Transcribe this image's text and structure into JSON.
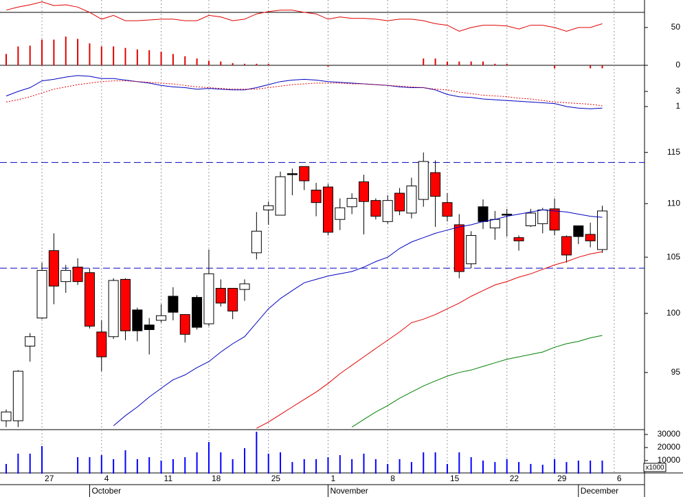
{
  "chart_data": [
    {
      "type": "line",
      "ylim": [
        0,
        86.4
      ],
      "yticks": [
        50,
        0
      ],
      "hlines": [
        70
      ],
      "hline_color": "#000000",
      "hline_style": "solid",
      "series": [
        {
          "style": "line",
          "color": "#e00000",
          "values": [
            73,
            77,
            80,
            84,
            79,
            80,
            77,
            70,
            61,
            66,
            59,
            59,
            60,
            61,
            61,
            59,
            59,
            66,
            64,
            59,
            61,
            68,
            71,
            73,
            73,
            70,
            68,
            61,
            64,
            62,
            62,
            61,
            59,
            61,
            61,
            59,
            55,
            53,
            45,
            50,
            53,
            53,
            52,
            48,
            53,
            53,
            50,
            45,
            50,
            50,
            55,
            null
          ]
        },
        {
          "style": "bar",
          "color": "#e00000",
          "values": [
            15,
            25,
            26,
            34,
            34,
            38,
            35,
            29,
            25,
            25,
            23,
            21,
            20,
            18,
            15,
            12,
            9,
            6,
            5,
            3,
            2,
            2,
            2,
            0,
            0,
            0,
            0,
            -2,
            0,
            0,
            0,
            0,
            0,
            0,
            0,
            9,
            9,
            5,
            5,
            5,
            5,
            2,
            2,
            0,
            0,
            0,
            -4,
            0,
            0,
            -4,
            -4,
            null
          ]
        }
      ]
    },
    {
      "type": "line",
      "ylim": [
        -1.27,
        6.45
      ],
      "yticks": [
        3,
        1
      ],
      "series": [
        {
          "style": "line",
          "color": "#0000c0",
          "values": [
            2.4,
            3.0,
            3.5,
            4.4,
            4.6,
            4.9,
            5.1,
            5.0,
            4.7,
            4.7,
            4.5,
            4.3,
            4.1,
            3.8,
            3.6,
            3.5,
            3.3,
            3.4,
            3.3,
            3.2,
            3.2,
            3.5,
            3.9,
            4.3,
            4.5,
            4.6,
            4.5,
            4.3,
            4.2,
            4.1,
            4.0,
            3.9,
            3.8,
            3.6,
            3.5,
            3.5,
            3.2,
            2.6,
            2.3,
            2.2,
            2.0,
            1.9,
            1.8,
            1.7,
            1.6,
            1.5,
            1.4,
            1.0,
            0.8,
            0.7,
            0.8,
            null
          ]
        },
        {
          "style": "dotted",
          "color": "#e00000",
          "values": [
            1.6,
            1.9,
            2.3,
            2.8,
            3.3,
            3.6,
            3.9,
            4.1,
            4.3,
            4.4,
            4.4,
            4.3,
            4.2,
            4.1,
            4.0,
            3.8,
            3.6,
            3.5,
            3.4,
            3.3,
            3.3,
            3.3,
            3.5,
            3.7,
            3.9,
            4.0,
            4.1,
            4.1,
            4.1,
            4.0,
            4.0,
            3.9,
            3.8,
            3.7,
            3.6,
            3.5,
            3.3,
            3.2,
            2.9,
            2.7,
            2.5,
            2.4,
            2.3,
            2.1,
            2.0,
            1.8,
            1.6,
            1.5,
            1.4,
            1.3,
            1.1,
            null
          ]
        }
      ]
    },
    {
      "type": "candlestick",
      "log_scale": true,
      "ylim": [
        90.4,
        117.9
      ],
      "yticks": [
        115,
        110,
        105,
        100,
        95
      ],
      "hlines": [
        114,
        104
      ],
      "hline_color": "#0000c0",
      "hline_style": "dashed",
      "up_color": "#ffffff",
      "down_color": "#ff0000",
      "down_above_prev_close_color": "#000000",
      "open": [
        91.1,
        91.1,
        97.2,
        99.6,
        105.6,
        102.8,
        104.1,
        103.6,
        98.4,
        98.0,
        103.0,
        100.3,
        99.0,
        99.4,
        101.5,
        99.9,
        101.4,
        99.1,
        102.2,
        102.2,
        102.1,
        105.4,
        109.4,
        108.9,
        112.9,
        113.6,
        111.3,
        111.6,
        108.5,
        109.7,
        112.1,
        110.3,
        108.3,
        111.0,
        109.1,
        110.4,
        113.0,
        110.1,
        108.0,
        104.4,
        109.7,
        107.7,
        109.0,
        106.8,
        107.9,
        108.1,
        109.5,
        106.9,
        107.9,
        107.1,
        105.7,
        null
      ],
      "high": [
        92.0,
        95.2,
        98.3,
        104.5,
        107.2,
        104.3,
        104.9,
        104.0,
        99.4,
        103.1,
        103.1,
        100.5,
        99.6,
        100.8,
        102.3,
        99.9,
        101.6,
        105.7,
        103.0,
        102.2,
        103.0,
        109.2,
        110.2,
        113.1,
        113.4,
        113.6,
        112.0,
        111.9,
        110.5,
        111.0,
        112.8,
        110.5,
        110.8,
        111.5,
        112.5,
        115.0,
        114.2,
        111.0,
        109.0,
        107.4,
        110.4,
        109.3,
        109.5,
        107.0,
        109.5,
        109.6,
        110.5,
        107.0,
        107.9,
        108.2,
        109.8,
        null
      ],
      "low": [
        90.6,
        90.6,
        95.9,
        99.5,
        100.8,
        101.8,
        102.5,
        98.7,
        95.1,
        97.8,
        97.7,
        97.6,
        96.5,
        99.2,
        99.4,
        97.5,
        98.6,
        98.9,
        100.6,
        99.5,
        101.1,
        104.8,
        108.0,
        108.9,
        110.8,
        111.3,
        108.8,
        107.0,
        107.5,
        109.0,
        107.1,
        108.5,
        108.1,
        108.9,
        108.6,
        109.7,
        107.8,
        108.3,
        103.1,
        104.0,
        107.6,
        106.6,
        106.9,
        105.6,
        107.8,
        107.2,
        107.0,
        104.5,
        106.2,
        105.9,
        105.4,
        null
      ],
      "close": [
        91.8,
        95.1,
        98.0,
        103.8,
        102.4,
        103.8,
        102.8,
        98.9,
        96.3,
        102.9,
        98.5,
        98.5,
        98.6,
        99.8,
        100.1,
        98.2,
        98.8,
        103.5,
        100.9,
        100.2,
        102.6,
        107.4,
        109.8,
        112.6,
        112.8,
        112.2,
        110.1,
        107.3,
        109.6,
        110.5,
        110.2,
        108.8,
        110.3,
        109.3,
        111.7,
        114.1,
        110.7,
        108.8,
        103.7,
        107.0,
        108.3,
        108.5,
        108.9,
        106.5,
        109.1,
        109.4,
        107.5,
        105.2,
        106.9,
        106.5,
        109.3,
        null
      ],
      "series": [
        {
          "style": "line",
          "color": "#0000c0",
          "values": [
            null,
            null,
            null,
            null,
            null,
            null,
            null,
            null,
            null,
            90.7,
            91.5,
            92.2,
            93.0,
            93.7,
            94.4,
            94.8,
            95.4,
            95.9,
            96.7,
            97.4,
            98.0,
            99.2,
            100.4,
            101.3,
            102.0,
            102.7,
            103.0,
            103.3,
            103.5,
            103.7,
            104.1,
            104.6,
            105.0,
            105.8,
            106.4,
            106.8,
            107.2,
            107.5,
            107.8,
            108.0,
            108.3,
            108.5,
            108.8,
            109.0,
            109.2,
            109.4,
            109.3,
            109.2,
            109.0,
            108.8,
            108.7,
            null
          ]
        },
        {
          "style": "line",
          "color": "#e00000",
          "values": [
            null,
            null,
            null,
            null,
            null,
            null,
            null,
            null,
            null,
            null,
            null,
            null,
            null,
            null,
            null,
            null,
            null,
            null,
            null,
            null,
            null,
            90.5,
            91.0,
            91.6,
            92.2,
            92.8,
            93.4,
            94.1,
            94.9,
            95.6,
            96.3,
            97.0,
            97.7,
            98.4,
            99.2,
            99.5,
            99.9,
            100.4,
            100.9,
            101.5,
            102.0,
            102.5,
            102.8,
            103.2,
            103.5,
            103.9,
            104.3,
            104.6,
            105.0,
            105.3,
            105.5,
            null
          ]
        },
        {
          "style": "line",
          "color": "#008000",
          "values": [
            null,
            null,
            null,
            null,
            null,
            null,
            null,
            null,
            null,
            null,
            null,
            null,
            null,
            null,
            null,
            null,
            null,
            null,
            null,
            null,
            null,
            null,
            null,
            null,
            null,
            null,
            null,
            null,
            null,
            90.6,
            91.2,
            91.8,
            92.3,
            92.9,
            93.4,
            93.9,
            94.3,
            94.7,
            95.0,
            95.2,
            95.5,
            95.8,
            96.1,
            96.3,
            96.5,
            96.7,
            97.1,
            97.4,
            97.6,
            97.9,
            98.1,
            null
          ]
        }
      ]
    },
    {
      "type": "bar",
      "ylim": [
        0,
        33700
      ],
      "yticks": [
        30000,
        20000,
        10000
      ],
      "unit_label": "x1000",
      "color": "#0000ff",
      "values": [
        7400,
        15300,
        15300,
        21100,
        null,
        null,
        12600,
        12600,
        14200,
        11100,
        17900,
        11100,
        12600,
        10000,
        11100,
        12600,
        16300,
        24200,
        16300,
        11100,
        19500,
        32100,
        15300,
        16300,
        8900,
        11100,
        11100,
        12600,
        14200,
        11100,
        15300,
        11100,
        7400,
        11100,
        8900,
        16300,
        16300,
        7400,
        16300,
        12600,
        10000,
        8900,
        11100,
        8900,
        7400,
        6800,
        11100,
        8900,
        10000,
        10000,
        10000,
        null
      ],
      "categories": [
        null,
        null,
        null,
        "27",
        null,
        null,
        null,
        null,
        "4",
        null,
        null,
        null,
        null,
        "11",
        null,
        null,
        null,
        "18",
        null,
        null,
        null,
        null,
        "25",
        null,
        null,
        null,
        null,
        "1",
        null,
        null,
        null,
        null,
        "8",
        null,
        null,
        null,
        null,
        "15",
        null,
        null,
        null,
        null,
        "22",
        null,
        null,
        null,
        "29",
        null,
        null,
        null,
        null,
        "6"
      ],
      "month_categories": [
        null,
        null,
        null,
        null,
        null,
        null,
        null,
        "October",
        null,
        null,
        null,
        null,
        null,
        null,
        null,
        null,
        null,
        null,
        null,
        null,
        null,
        null,
        null,
        null,
        null,
        null,
        null,
        "November",
        null,
        null,
        null,
        null,
        null,
        null,
        null,
        null,
        null,
        null,
        null,
        null,
        null,
        null,
        null,
        null,
        null,
        null,
        null,
        null,
        "December",
        null,
        null,
        null
      ]
    }
  ]
}
